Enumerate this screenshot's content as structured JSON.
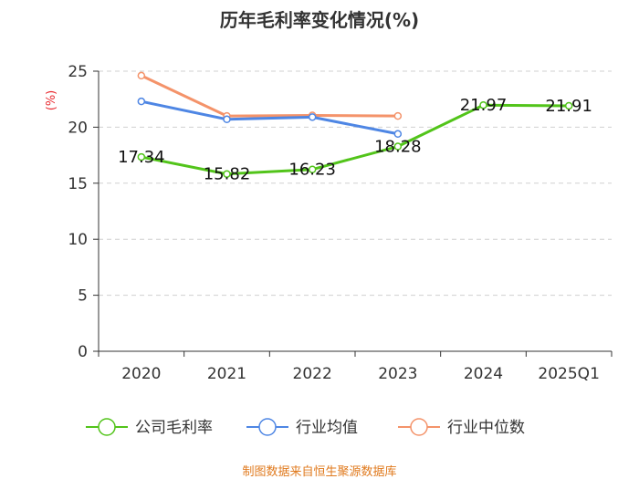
{
  "chart_data": {
    "type": "line",
    "title": "历年毛利率变化情况(%)",
    "ylabel": "(%)",
    "xlabel": "",
    "categories": [
      "2020",
      "2021",
      "2022",
      "2023",
      "2024",
      "2025Q1"
    ],
    "ylim": [
      0,
      25
    ],
    "yticks": [
      0,
      5,
      10,
      15,
      20,
      25
    ],
    "grid": true,
    "legend_position": "bottom",
    "series": [
      {
        "name": "公司毛利率",
        "color": "#52c41a",
        "values": [
          17.34,
          15.82,
          16.23,
          18.28,
          21.97,
          21.91
        ],
        "labels": [
          "17.34",
          "15.82",
          "16.23",
          "18.28",
          "21.97",
          "21.91"
        ],
        "show_labels": true
      },
      {
        "name": "行业均值",
        "color": "#4e86e4",
        "values": [
          22.3,
          20.7,
          20.9,
          19.4,
          null,
          null
        ],
        "show_labels": false
      },
      {
        "name": "行业中位数",
        "color": "#f4936a",
        "values": [
          24.6,
          21.0,
          21.05,
          21.0,
          null,
          null
        ],
        "show_labels": false
      }
    ]
  },
  "source": "制图数据来自恒生聚源数据库"
}
